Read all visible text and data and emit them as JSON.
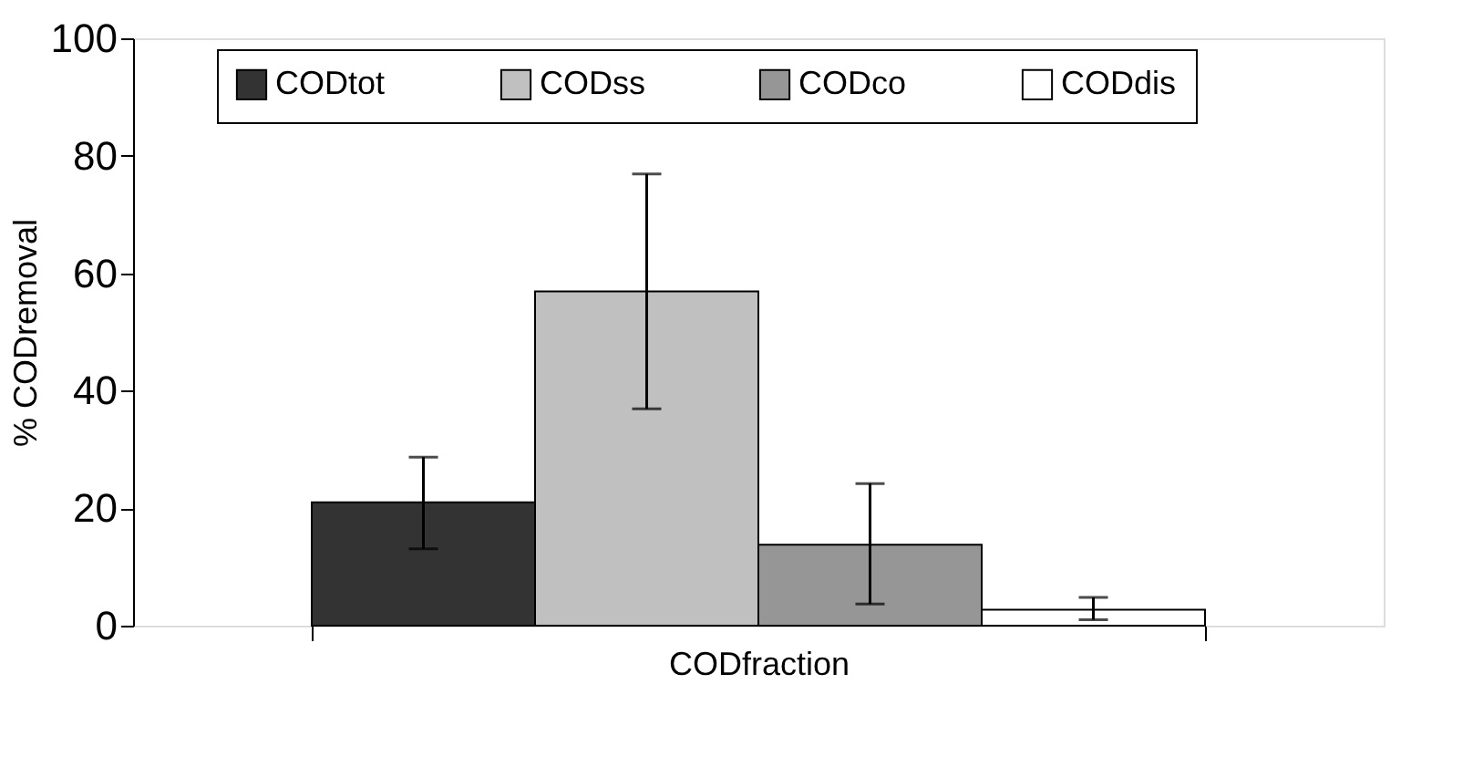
{
  "chart_data": {
    "type": "bar",
    "xlabel": "CODfraction",
    "ylabel": "% CODremoval",
    "categories": [
      null
    ],
    "series": [
      {
        "name": "CODtot",
        "color": "#333333",
        "values": [
          21
        ],
        "errors": [
          [
            13.1,
            28.7
          ]
        ]
      },
      {
        "name": "CODss",
        "color": "#c0c0c0",
        "values": [
          56.9
        ],
        "errors": [
          [
            36.9,
            76.9
          ]
        ]
      },
      {
        "name": "CODco",
        "color": "#969696",
        "values": [
          13.8
        ],
        "errors": [
          [
            3.7,
            24.2
          ]
        ]
      },
      {
        "name": "CODdis",
        "color": "#ffffff",
        "values": [
          2.7
        ],
        "errors": [
          [
            1.0,
            4.8
          ]
        ]
      }
    ],
    "ylim": [
      0,
      100
    ],
    "yticks": [
      0,
      20,
      40,
      60,
      80,
      100
    ],
    "grid": false,
    "legend": "top",
    "tick_labels": "y"
  }
}
